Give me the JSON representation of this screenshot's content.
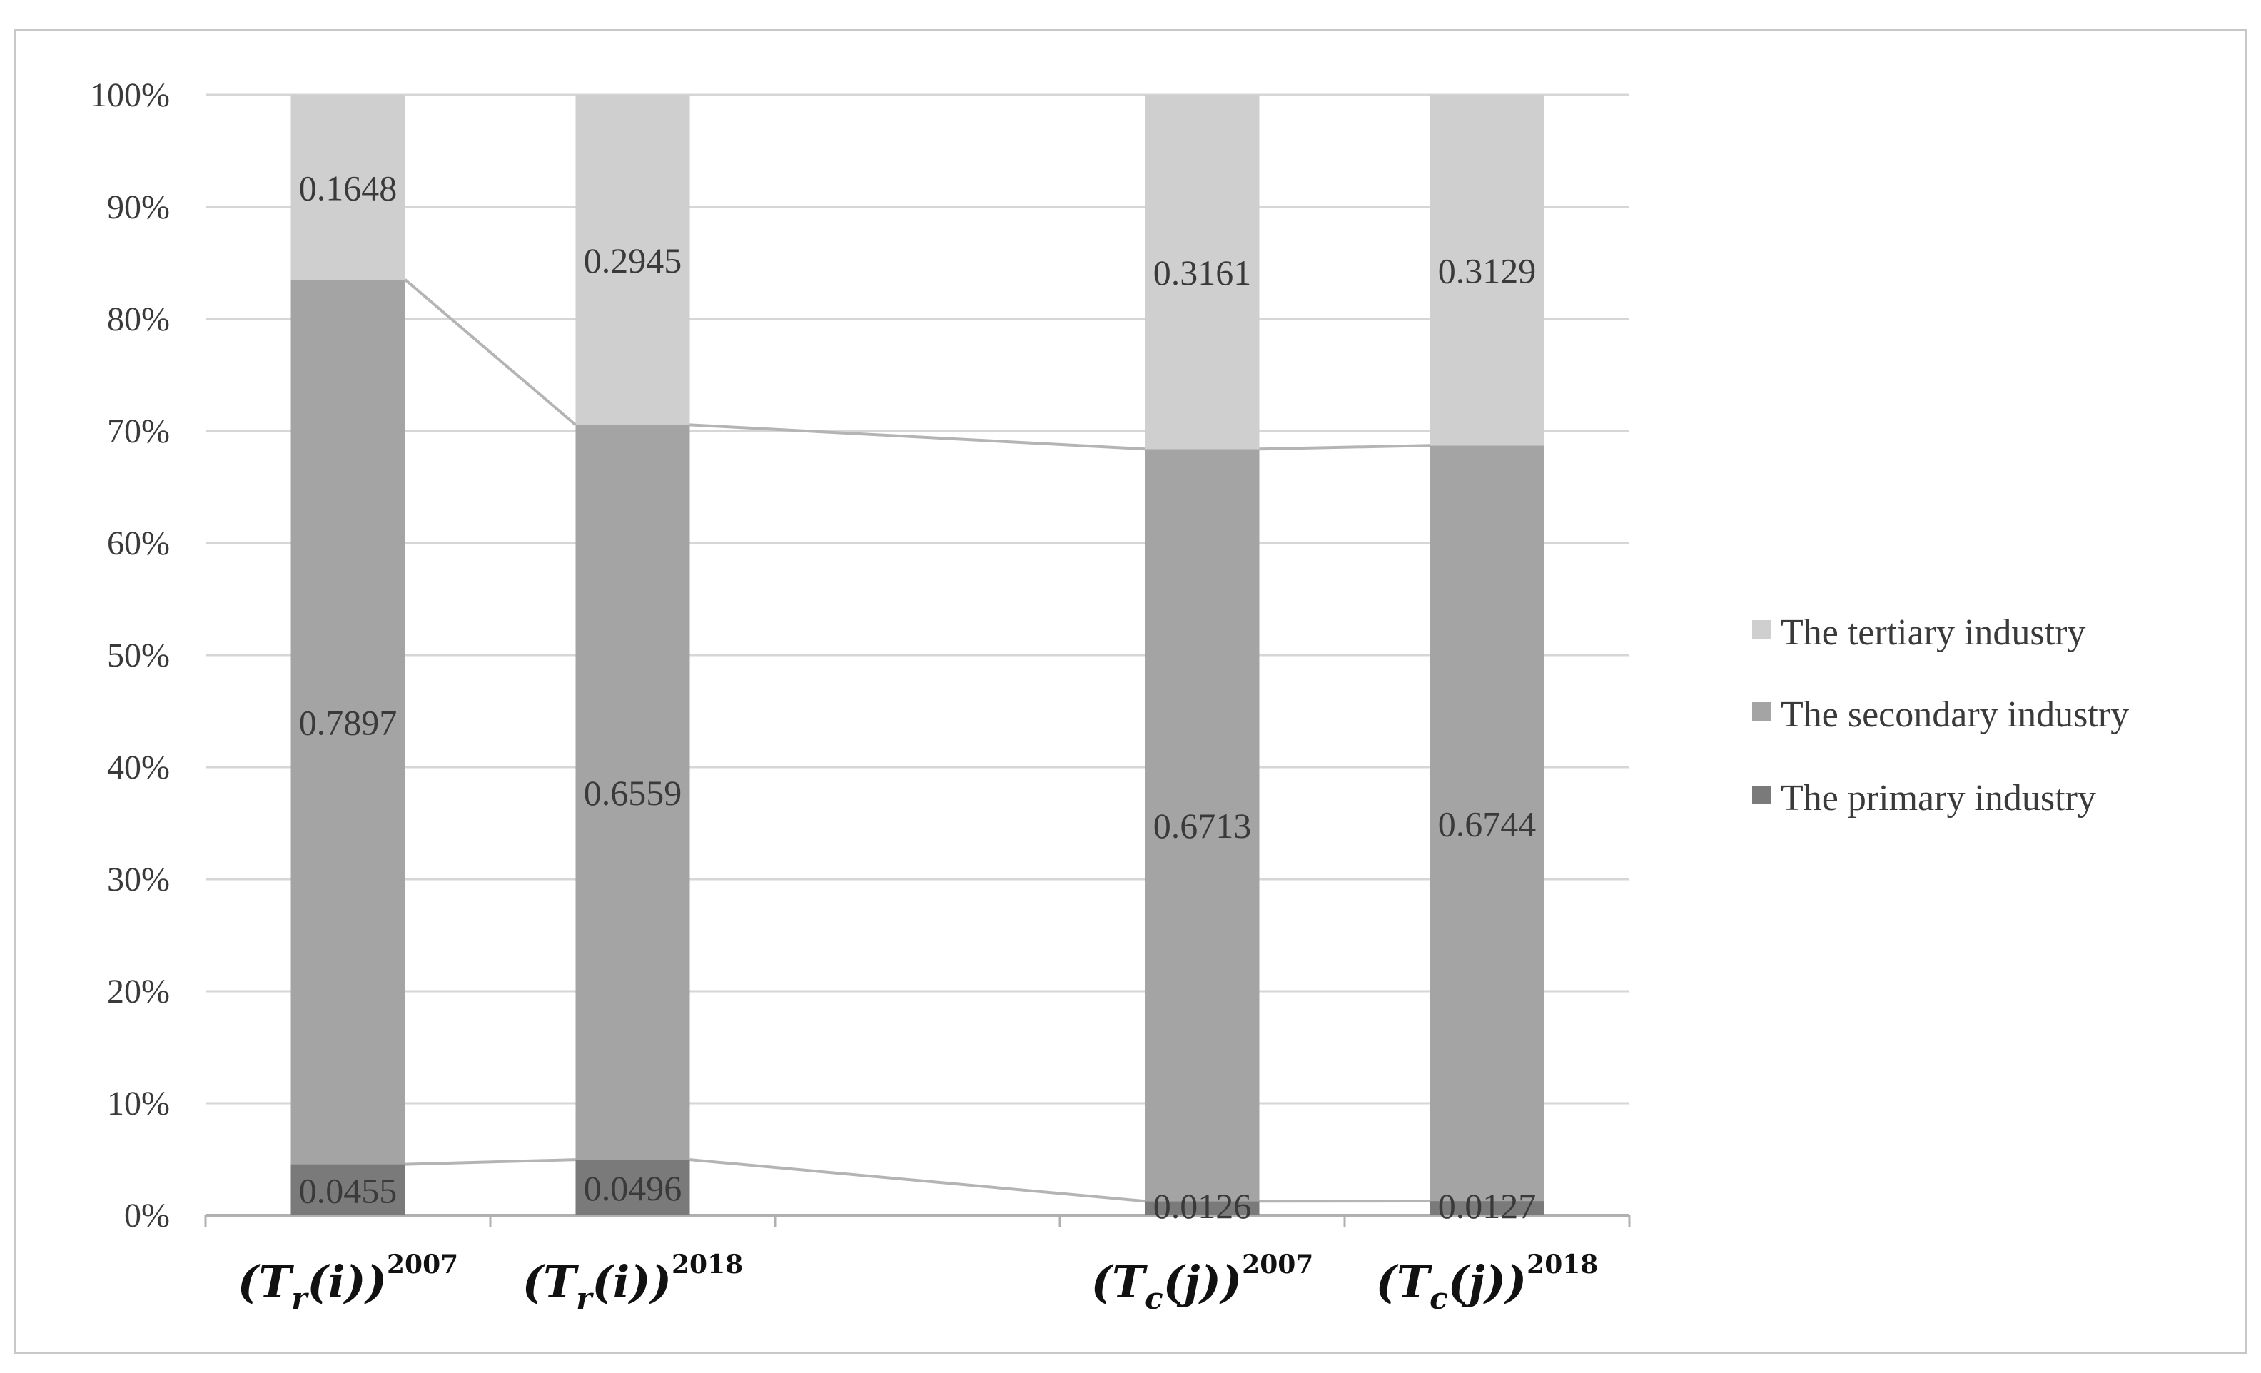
{
  "chart_data": {
    "type": "bar",
    "stacked": true,
    "percent_stacked": true,
    "categories": [
      {
        "base": "T",
        "sub": "r",
        "arg": "i",
        "sup": "2007",
        "slot": 0
      },
      {
        "base": "T",
        "sub": "r",
        "arg": "i",
        "sup": "2018",
        "slot": 1
      },
      {
        "base": "T",
        "sub": "c",
        "arg": "j",
        "sup": "2007",
        "slot": 3
      },
      {
        "base": "T",
        "sub": "c",
        "arg": "j",
        "sup": "2018",
        "slot": 4
      }
    ],
    "series": [
      {
        "name": "The primary industry",
        "values": [
          0.0455,
          0.0496,
          0.0126,
          0.0127
        ],
        "color": "#7a7a7a"
      },
      {
        "name": "The secondary industry",
        "values": [
          0.7897,
          0.6559,
          0.6713,
          0.6744
        ],
        "color": "#a4a4a4"
      },
      {
        "name": "The tertiary industry",
        "values": [
          0.1648,
          0.2945,
          0.3161,
          0.3129
        ],
        "color": "#cfcfcf"
      }
    ],
    "legend_order": [
      2,
      1,
      0
    ],
    "ylim": [
      0,
      1
    ],
    "yticks": [
      "0%",
      "10%",
      "20%",
      "30%",
      "40%",
      "50%",
      "60%",
      "70%",
      "80%",
      "90%",
      "100%"
    ],
    "grid": true,
    "series_lines": true,
    "legend_position": "right",
    "title": "",
    "xlabel": "",
    "ylabel": ""
  }
}
